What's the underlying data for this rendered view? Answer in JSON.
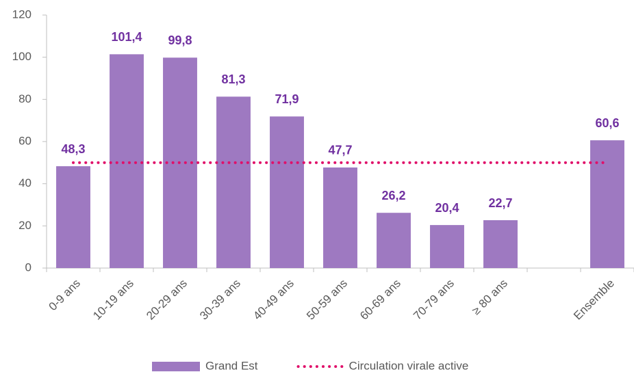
{
  "chart_data": {
    "type": "bar",
    "categories": [
      "0-9 ans",
      "10-19 ans",
      "20-29 ans",
      "30-39 ans",
      "40-49 ans",
      "50-59 ans",
      "60-69 ans",
      "70-79 ans",
      "≥ 80 ans",
      null,
      "Ensemble"
    ],
    "series": [
      {
        "name": "Grand Est",
        "type": "bar",
        "color": "#9e79c1",
        "values": [
          48.3,
          101.4,
          99.8,
          81.3,
          71.9,
          47.7,
          26.2,
          20.4,
          22.7,
          null,
          60.6
        ],
        "value_labels": [
          "48,3",
          "101,4",
          "99,8",
          "81,3",
          "71,9",
          "47,7",
          "26,2",
          "20,4",
          "22,7",
          null,
          "60,6"
        ]
      },
      {
        "name": "Circulation virale active",
        "type": "line",
        "color": "#e0106a",
        "values": [
          50,
          50,
          50,
          50,
          50,
          50,
          50,
          50,
          50,
          50,
          50
        ]
      }
    ],
    "ylim": [
      0,
      120
    ],
    "yticks": [
      0,
      20,
      40,
      60,
      80,
      100,
      120
    ],
    "grid": false,
    "legend": "bottom"
  }
}
